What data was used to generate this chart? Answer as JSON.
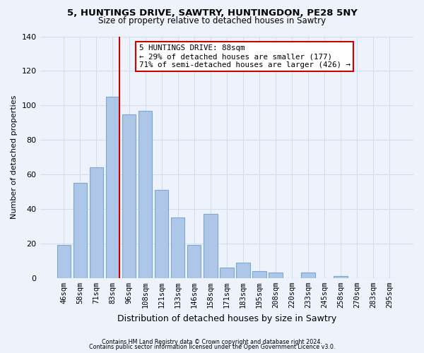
{
  "title": "5, HUNTINGS DRIVE, SAWTRY, HUNTINGDON, PE28 5NY",
  "subtitle": "Size of property relative to detached houses in Sawtry",
  "xlabel": "Distribution of detached houses by size in Sawtry",
  "ylabel": "Number of detached properties",
  "categories": [
    "46sqm",
    "58sqm",
    "71sqm",
    "83sqm",
    "96sqm",
    "108sqm",
    "121sqm",
    "133sqm",
    "146sqm",
    "158sqm",
    "171sqm",
    "183sqm",
    "195sqm",
    "208sqm",
    "220sqm",
    "233sqm",
    "245sqm",
    "258sqm",
    "270sqm",
    "283sqm",
    "295sqm"
  ],
  "values": [
    19,
    55,
    64,
    105,
    95,
    97,
    51,
    35,
    19,
    37,
    6,
    9,
    4,
    3,
    0,
    3,
    0,
    1,
    0,
    0,
    0
  ],
  "bar_color": "#aec6e8",
  "bar_edge_color": "#7aaad0",
  "vline_color": "#cc0000",
  "annotation_title": "5 HUNTINGS DRIVE: 88sqm",
  "annotation_line1": "← 29% of detached houses are smaller (177)",
  "annotation_line2": "71% of semi-detached houses are larger (426) →",
  "annotation_box_color": "#ffffff",
  "annotation_box_edge": "#cc0000",
  "ylim": [
    0,
    140
  ],
  "yticks": [
    0,
    20,
    40,
    60,
    80,
    100,
    120,
    140
  ],
  "footer1": "Contains HM Land Registry data © Crown copyright and database right 2024.",
  "footer2": "Contains public sector information licensed under the Open Government Licence v3.0.",
  "bg_color": "#eef3fb",
  "grid_color": "#d0dff0"
}
